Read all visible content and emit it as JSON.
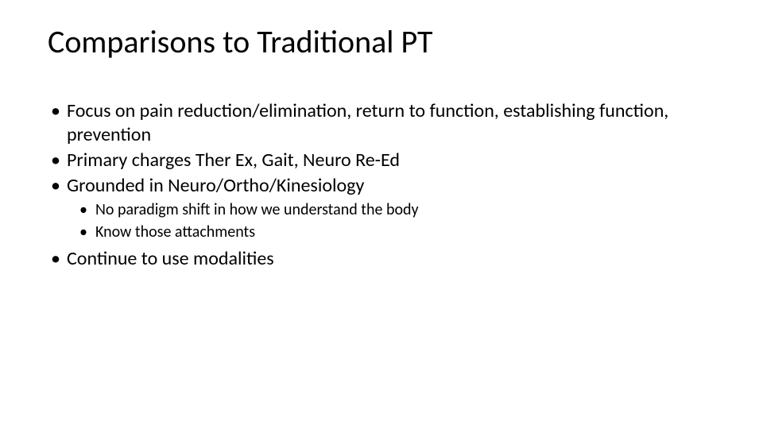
{
  "slide": {
    "title": "Comparisons to Traditional PT",
    "bullets": {
      "b1": "Focus on pain reduction/elimination, return to function, establishing function, prevention",
      "b2": "Primary charges Ther Ex, Gait, Neuro Re-Ed",
      "b3": "Grounded in Neuro/Ortho/Kinesiology",
      "b3_sub1": "No paradigm shift in how we understand the body",
      "b3_sub2": "Know those attachments",
      "b4": "Continue to use modalities"
    }
  },
  "style": {
    "background_color": "#ffffff",
    "text_color": "#000000",
    "title_fontsize": 40,
    "body_fontsize_l1": 24,
    "body_fontsize_l2": 20,
    "font_family": "Calibri"
  }
}
